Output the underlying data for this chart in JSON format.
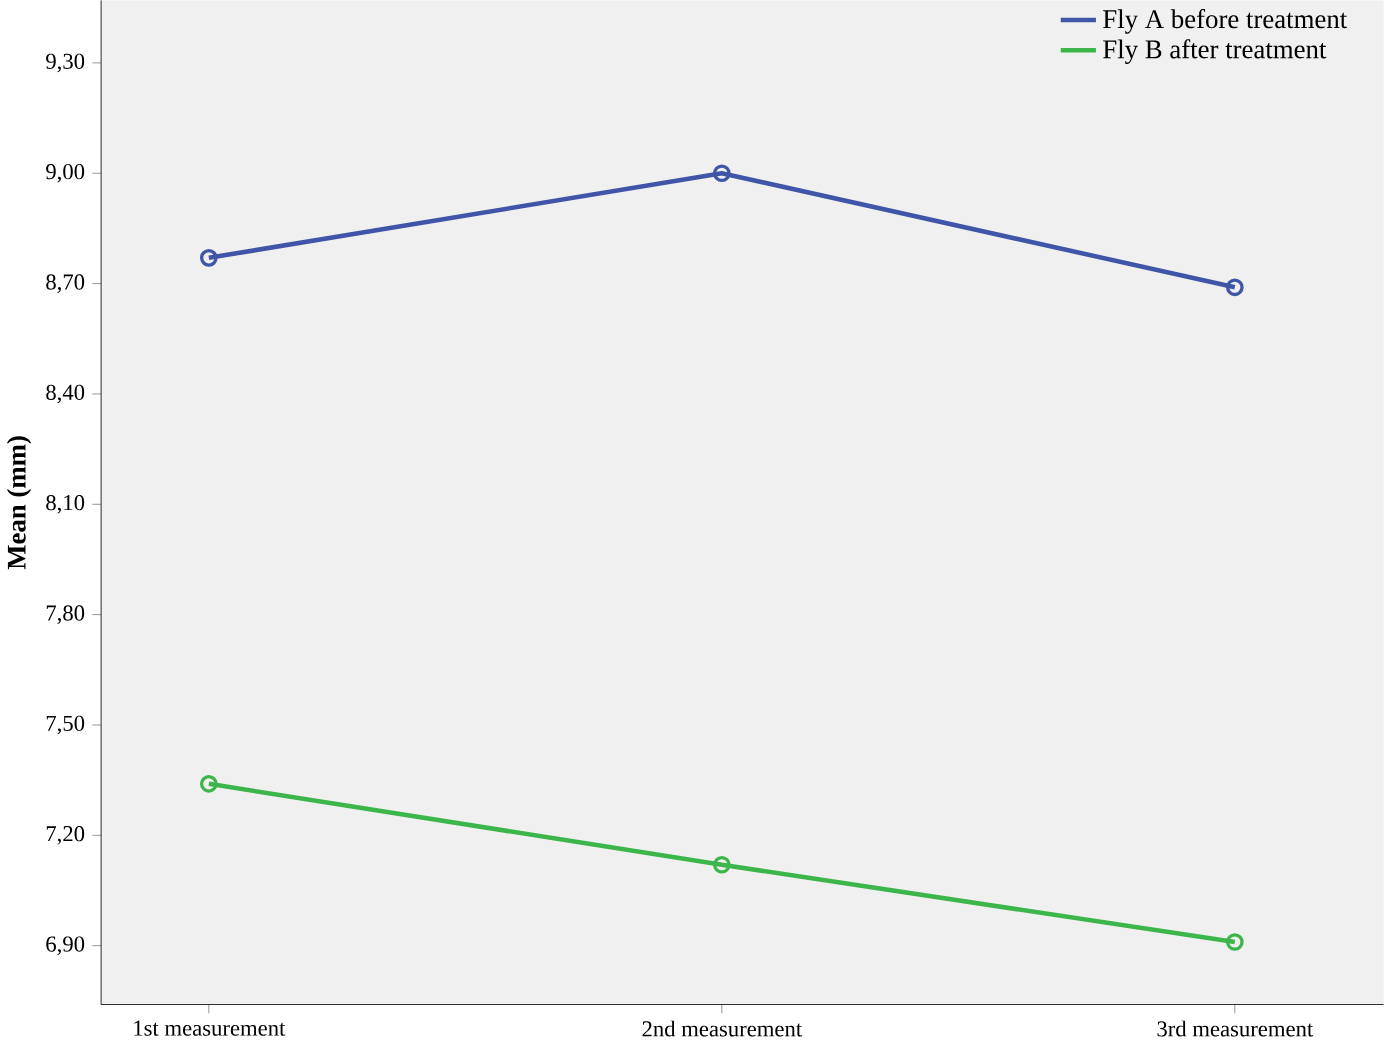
{
  "chart_data": {
    "type": "line",
    "ylabel": "Mean (mm)",
    "categories": [
      "1st measurement",
      "2nd measurement",
      "3rd measurement"
    ],
    "series": [
      {
        "name": "Fly A before treatment",
        "color": "#3f55a8",
        "values": [
          8.77,
          9.0,
          8.69
        ]
      },
      {
        "name": "Fly B after treatment",
        "color": "#3cb64a",
        "values": [
          7.34,
          7.12,
          6.91
        ]
      }
    ],
    "ylim": [
      6.74,
      9.47
    ],
    "yticks": [
      {
        "value": 6.9,
        "label": "6,90"
      },
      {
        "value": 7.2,
        "label": "7,20"
      },
      {
        "value": 7.5,
        "label": "7,50"
      },
      {
        "value": 7.8,
        "label": "7,80"
      },
      {
        "value": 8.1,
        "label": "8,10"
      },
      {
        "value": 8.4,
        "label": "8,40"
      },
      {
        "value": 8.7,
        "label": "8,70"
      },
      {
        "value": 9.0,
        "label": "9,00"
      },
      {
        "value": 9.3,
        "label": "9,30"
      }
    ],
    "grid": false,
    "legend": "top right",
    "marker": "circle",
    "line_style": "solid"
  }
}
